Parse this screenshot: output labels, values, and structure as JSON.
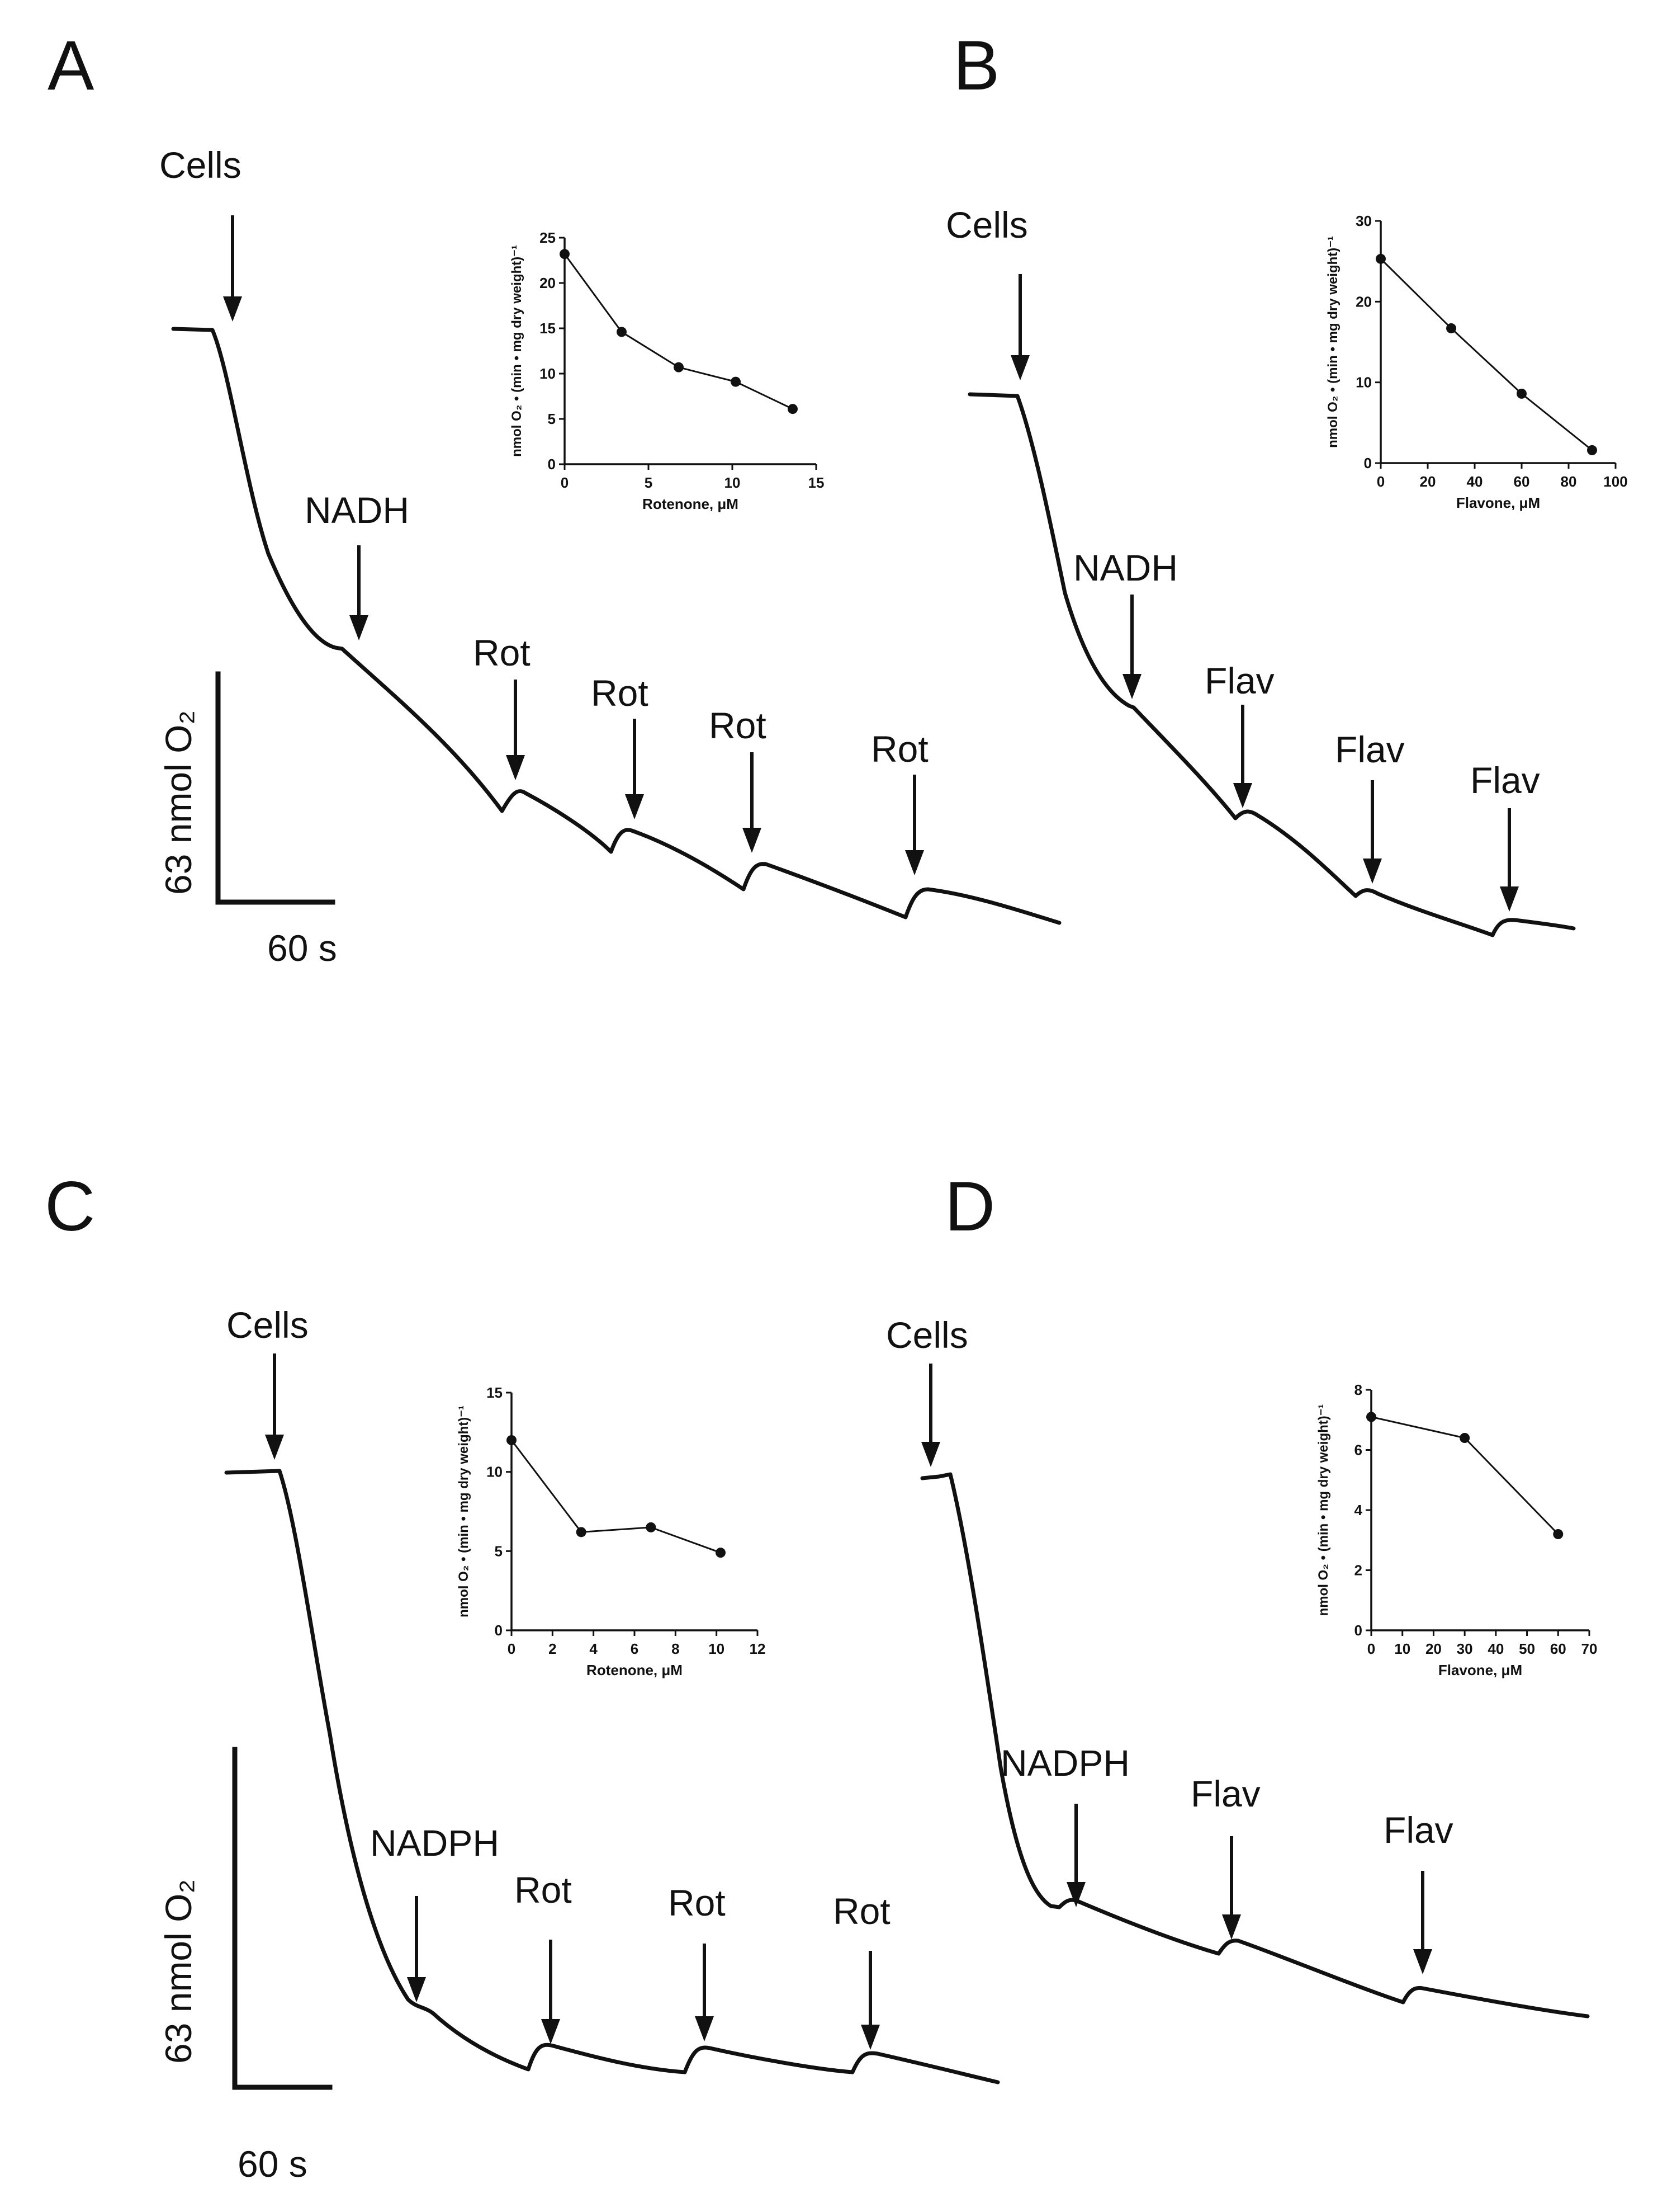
{
  "chart_data": [
    {
      "panel": "A",
      "type": "line",
      "trace_description": "oxygen consumption trace",
      "annotations": [
        "Cells",
        "NADH",
        "Rot",
        "Rot",
        "Rot",
        "Rot"
      ],
      "scale_bar": {
        "y_label": "63 nmol O₂",
        "x_label": "60 s"
      },
      "inset": {
        "type": "line",
        "x": [
          0,
          3.4,
          6.8,
          10.2,
          13.6
        ],
        "y": [
          23.2,
          14.6,
          10.7,
          9.1,
          6.1
        ],
        "xlim": [
          0,
          15
        ],
        "xticks": [
          0,
          5,
          10,
          15
        ],
        "ylim": [
          0,
          25
        ],
        "yticks": [
          0,
          5,
          10,
          15,
          20,
          25
        ],
        "xlabel": "Rotenone, μM",
        "ylabel": "nmol O₂ • (min • mg dry weight)⁻¹"
      }
    },
    {
      "panel": "B",
      "type": "line",
      "trace_description": "oxygen consumption trace",
      "annotations": [
        "Cells",
        "NADH",
        "Flav",
        "Flav",
        "Flav"
      ],
      "scale_bar": null,
      "inset": {
        "type": "line",
        "x": [
          0,
          30,
          60,
          90
        ],
        "y": [
          25.3,
          16.7,
          8.6,
          1.6
        ],
        "xlim": [
          0,
          100
        ],
        "xticks": [
          0,
          20,
          40,
          60,
          80,
          100
        ],
        "ylim": [
          0,
          30
        ],
        "yticks": [
          0,
          10,
          20,
          30
        ],
        "xlabel": "Flavone, μM",
        "ylabel": "nmol O₂ • (min • mg dry weight)⁻¹"
      }
    },
    {
      "panel": "C",
      "type": "line",
      "trace_description": "oxygen consumption trace",
      "annotations": [
        "Cells",
        "NADPH",
        "Rot",
        "Rot",
        "Rot"
      ],
      "scale_bar": {
        "y_label": "63 nmol O₂",
        "x_label": "60 s"
      },
      "inset": {
        "type": "line",
        "x": [
          0,
          3.4,
          6.8,
          10.2
        ],
        "y": [
          12.0,
          6.2,
          6.5,
          4.9
        ],
        "xlim": [
          0,
          12
        ],
        "xticks": [
          0,
          2,
          4,
          6,
          8,
          10,
          12
        ],
        "ylim": [
          0,
          15
        ],
        "yticks": [
          0,
          5,
          10,
          15
        ],
        "xlabel": "Rotenone, μM",
        "ylabel": "nmol O₂ • (min • mg dry weight)⁻¹"
      }
    },
    {
      "panel": "D",
      "type": "line",
      "trace_description": "oxygen consumption trace",
      "annotations": [
        "Cells",
        "NADPH",
        "Flav",
        "Flav"
      ],
      "scale_bar": null,
      "inset": {
        "type": "line",
        "x": [
          0,
          30,
          60
        ],
        "y": [
          7.1,
          6.4,
          3.2
        ],
        "xlim": [
          0,
          70
        ],
        "xticks": [
          0,
          10,
          20,
          30,
          40,
          50,
          60,
          70
        ],
        "ylim": [
          0,
          8
        ],
        "yticks": [
          0,
          2,
          4,
          6,
          8
        ],
        "xlabel": "Flavone, μM",
        "ylabel": "nmol O₂ • (min • mg dry weight)⁻¹"
      }
    }
  ]
}
